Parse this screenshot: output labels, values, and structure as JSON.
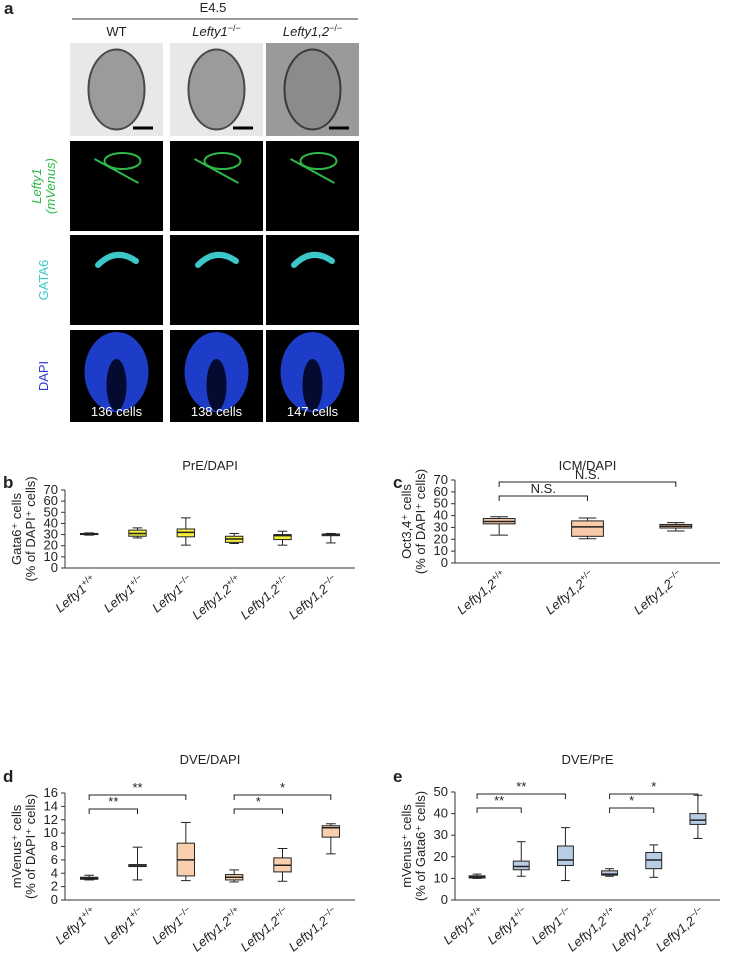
{
  "panel_a": {
    "letter": "a",
    "stage": "E4.5",
    "columns": [
      {
        "name": "WT"
      },
      {
        "name": "Lefty1",
        "sup": "−/−"
      },
      {
        "name": "Lefty1,2",
        "sup": "−/−"
      }
    ],
    "rows": [
      [
        "Lefty1",
        "(mVenus)"
      ],
      [
        "GATA6"
      ],
      [
        "DAPI"
      ]
    ],
    "cell_counts": [
      "136 cells",
      "138 cells",
      "147 cells"
    ]
  },
  "chart_data": [
    {
      "type": "box",
      "panel": "b",
      "title": "PrE/DAPI",
      "y_label": [
        "Gata6⁺ cells",
        "(% of DAPI⁺ cells)"
      ],
      "color": "#f5ef3a",
      "categories": [
        {
          "name": "Lefty1",
          "sup": "+/+"
        },
        {
          "name": "Lefty1",
          "sup": "+/−"
        },
        {
          "name": "Lefty1",
          "sup": "−/−"
        },
        {
          "name": "Lefty1,2",
          "sup": "+/+"
        },
        {
          "name": "Lefty1,2",
          "sup": "+/−"
        },
        {
          "name": "Lefty1,2",
          "sup": "−/−"
        }
      ],
      "boxes": [
        {
          "min": 29.5,
          "q1": 30,
          "median": 30.5,
          "q3": 31,
          "max": 31.5
        },
        {
          "min": 27,
          "q1": 28.5,
          "median": 31,
          "q3": 34,
          "max": 36
        },
        {
          "min": 20.5,
          "q1": 28,
          "median": 32,
          "q3": 35,
          "max": 45
        },
        {
          "min": 22,
          "q1": 23,
          "median": 26,
          "q3": 28.5,
          "max": 31
        },
        {
          "min": 20.5,
          "q1": 25.5,
          "median": 29,
          "q3": 30,
          "max": 33
        },
        {
          "min": 22.5,
          "q1": 29,
          "median": 30,
          "q3": 30.5,
          "max": 31
        }
      ],
      "ylim": [
        0,
        70
      ],
      "yticks": [
        0,
        10,
        20,
        30,
        40,
        50,
        60,
        70
      ],
      "brackets": []
    },
    {
      "type": "box",
      "panel": "c",
      "title": "ICM/DAPI",
      "y_label": [
        "Oct3,4⁺ cells",
        "(% of DAPI⁺ cells)"
      ],
      "color": "#f9cba8",
      "categories": [
        {
          "name": "Lefty1,2",
          "sup": "+/+"
        },
        {
          "name": "Lefty1,2",
          "sup": "+/−"
        },
        {
          "name": "Lefty1,2",
          "sup": "−/−"
        }
      ],
      "boxes": [
        {
          "min": 23.5,
          "q1": 33,
          "median": 35,
          "q3": 37.5,
          "max": 39
        },
        {
          "min": 20.5,
          "q1": 22.5,
          "median": 30.5,
          "q3": 35.5,
          "max": 38
        },
        {
          "min": 27,
          "q1": 29.5,
          "median": 31,
          "q3": 32.5,
          "max": 34
        }
      ],
      "ylim": [
        0,
        70
      ],
      "yticks": [
        0,
        10,
        20,
        30,
        40,
        50,
        60,
        70
      ],
      "brackets": [
        {
          "label": "N.S.",
          "from": 0,
          "to": 1
        },
        {
          "label": "N.S.",
          "from": 0,
          "to": 2
        }
      ]
    },
    {
      "type": "box",
      "panel": "d",
      "title": "DVE/DAPI",
      "y_label": [
        "mVenus⁺ cells",
        "(% of DAPI⁺ cells)"
      ],
      "color": "#f9cfae",
      "categories": [
        {
          "name": "Lefty1",
          "sup": "+/+"
        },
        {
          "name": "Lefty1",
          "sup": "+/−"
        },
        {
          "name": "Lefty1",
          "sup": "−/−"
        },
        {
          "name": "Lefty1,2",
          "sup": "+/+"
        },
        {
          "name": "Lefty1,2",
          "sup": "+/−"
        },
        {
          "name": "Lefty1,2",
          "sup": "−/−"
        }
      ],
      "boxes": [
        {
          "min": 3.0,
          "q1": 3.1,
          "median": 3.25,
          "q3": 3.4,
          "max": 3.7
        },
        {
          "min": 3.0,
          "q1": 5.0,
          "median": 5.1,
          "q3": 5.3,
          "max": 7.9
        },
        {
          "min": 2.9,
          "q1": 3.6,
          "median": 6.0,
          "q3": 8.5,
          "max": 11.6
        },
        {
          "min": 2.7,
          "q1": 3.0,
          "median": 3.4,
          "q3": 3.8,
          "max": 4.5
        },
        {
          "min": 2.8,
          "q1": 4.2,
          "median": 5.2,
          "q3": 6.3,
          "max": 7.7
        },
        {
          "min": 6.9,
          "q1": 9.4,
          "median": 10.8,
          "q3": 11.1,
          "max": 11.4
        }
      ],
      "ylim": [
        0,
        16
      ],
      "yticks": [
        0,
        2,
        4,
        6,
        8,
        10,
        12,
        14,
        16
      ],
      "brackets": [
        {
          "label": "**",
          "from": 0,
          "to": 1
        },
        {
          "label": "**",
          "from": 0,
          "to": 2
        },
        {
          "label": "*",
          "from": 3,
          "to": 4
        },
        {
          "label": "*",
          "from": 3,
          "to": 5
        }
      ]
    },
    {
      "type": "box",
      "panel": "e",
      "title": "DVE/PrE",
      "y_label": [
        "mVenus⁺ cells",
        "(% of Gata6⁺ cells)"
      ],
      "color": "#b8cce4",
      "categories": [
        {
          "name": "Lefty1",
          "sup": "+/+"
        },
        {
          "name": "Lefty1",
          "sup": "+/−"
        },
        {
          "name": "Lefty1",
          "sup": "−/−"
        },
        {
          "name": "Lefty1,2",
          "sup": "+/+"
        },
        {
          "name": "Lefty1,2",
          "sup": "+/−"
        },
        {
          "name": "Lefty1,2",
          "sup": "−/−"
        }
      ],
      "boxes": [
        {
          "min": 10,
          "q1": 10.2,
          "median": 10.7,
          "q3": 11.2,
          "max": 12
        },
        {
          "min": 11,
          "q1": 14,
          "median": 15.5,
          "q3": 18,
          "max": 27
        },
        {
          "min": 9,
          "q1": 16,
          "median": 18.5,
          "q3": 25,
          "max": 33.5
        },
        {
          "min": 11,
          "q1": 11.5,
          "median": 12,
          "q3": 13.5,
          "max": 14.5
        },
        {
          "min": 10.5,
          "q1": 14.5,
          "median": 18.5,
          "q3": 22,
          "max": 25.5
        },
        {
          "min": 28.5,
          "q1": 35,
          "median": 37,
          "q3": 40,
          "max": 48.5
        }
      ],
      "ylim": [
        0,
        50
      ],
      "yticks": [
        0,
        10,
        20,
        30,
        40,
        50
      ],
      "brackets": [
        {
          "label": "**",
          "from": 0,
          "to": 1
        },
        {
          "label": "**",
          "from": 0,
          "to": 2
        },
        {
          "label": "*",
          "from": 3,
          "to": 4
        },
        {
          "label": "*",
          "from": 3,
          "to": 5
        }
      ]
    }
  ]
}
